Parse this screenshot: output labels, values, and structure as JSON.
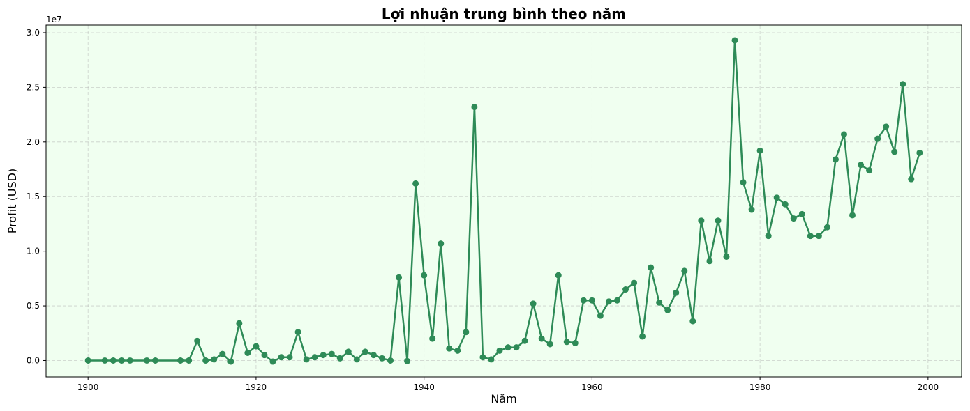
{
  "chart_data": {
    "type": "line",
    "title": "Lợi nhuận trung bình theo năm",
    "xlabel": "Năm",
    "ylabel": "Profit (USD)",
    "y_offset_label": "1e7",
    "xlim": [
      1895,
      2004
    ],
    "ylim": [
      -1500000,
      30700000
    ],
    "x_ticks": [
      1900,
      1920,
      1940,
      1960,
      1980,
      2000
    ],
    "x_tick_labels": [
      "1900",
      "1920",
      "1940",
      "1960",
      "1980",
      "2000"
    ],
    "y_ticks": [
      0,
      5000000,
      10000000,
      15000000,
      20000000,
      25000000,
      30000000
    ],
    "y_tick_labels": [
      "0.0",
      "0.5",
      "1.0",
      "1.5",
      "2.0",
      "2.5",
      "3.0"
    ],
    "grid": true,
    "background_color": "#f0fff0",
    "line_color": "#2e8b57",
    "series": [
      {
        "x": [
          1900,
          1902,
          1903,
          1904,
          1905,
          1907,
          1908,
          1911,
          1912,
          1913,
          1914,
          1915,
          1916,
          1917,
          1918,
          1919,
          1920,
          1921,
          1922,
          1923,
          1924,
          1925,
          1926,
          1927,
          1928,
          1929,
          1930,
          1931,
          1932,
          1933,
          1934,
          1935,
          1936,
          1937,
          1938,
          1939,
          1940,
          1941,
          1942,
          1943,
          1944,
          1945,
          1946,
          1947,
          1948,
          1949,
          1950,
          1951,
          1952,
          1953,
          1954,
          1955,
          1956,
          1957,
          1958,
          1959,
          1960,
          1961,
          1962,
          1963,
          1964,
          1965,
          1966,
          1967,
          1968,
          1969,
          1970,
          1971,
          1972,
          1973,
          1974,
          1975,
          1976,
          1977,
          1978,
          1979,
          1980,
          1981,
          1982,
          1983,
          1984,
          1985,
          1986,
          1987,
          1988,
          1989,
          1990,
          1991,
          1992,
          1993,
          1994,
          1995,
          1996,
          1997,
          1998,
          1999
        ],
        "values": [
          0,
          0,
          0,
          0,
          0,
          0,
          0,
          0,
          0,
          1800000,
          0,
          100000,
          600000,
          -100000,
          3400000,
          700000,
          1300000,
          500000,
          -100000,
          300000,
          300000,
          2600000,
          100000,
          300000,
          500000,
          600000,
          200000,
          800000,
          100000,
          800000,
          500000,
          200000,
          0,
          7600000,
          -50000,
          16200000,
          7800000,
          2000000,
          10700000,
          1100000,
          900000,
          2600000,
          23200000,
          300000,
          100000,
          900000,
          1200000,
          1200000,
          1800000,
          5200000,
          2000000,
          1500000,
          7800000,
          1700000,
          1600000,
          5500000,
          5500000,
          4100000,
          5400000,
          5500000,
          6500000,
          7100000,
          2200000,
          8500000,
          5300000,
          4600000,
          6200000,
          8200000,
          3600000,
          12800000,
          9100000,
          12800000,
          9500000,
          29300000,
          16300000,
          13800000,
          19200000,
          11400000,
          14900000,
          14300000,
          13000000,
          13400000,
          11400000,
          11400000,
          12200000,
          18400000,
          20700000,
          13300000,
          17900000,
          17400000,
          20300000,
          21400000,
          19100000,
          25300000,
          16600000,
          19000000
        ]
      }
    ]
  }
}
